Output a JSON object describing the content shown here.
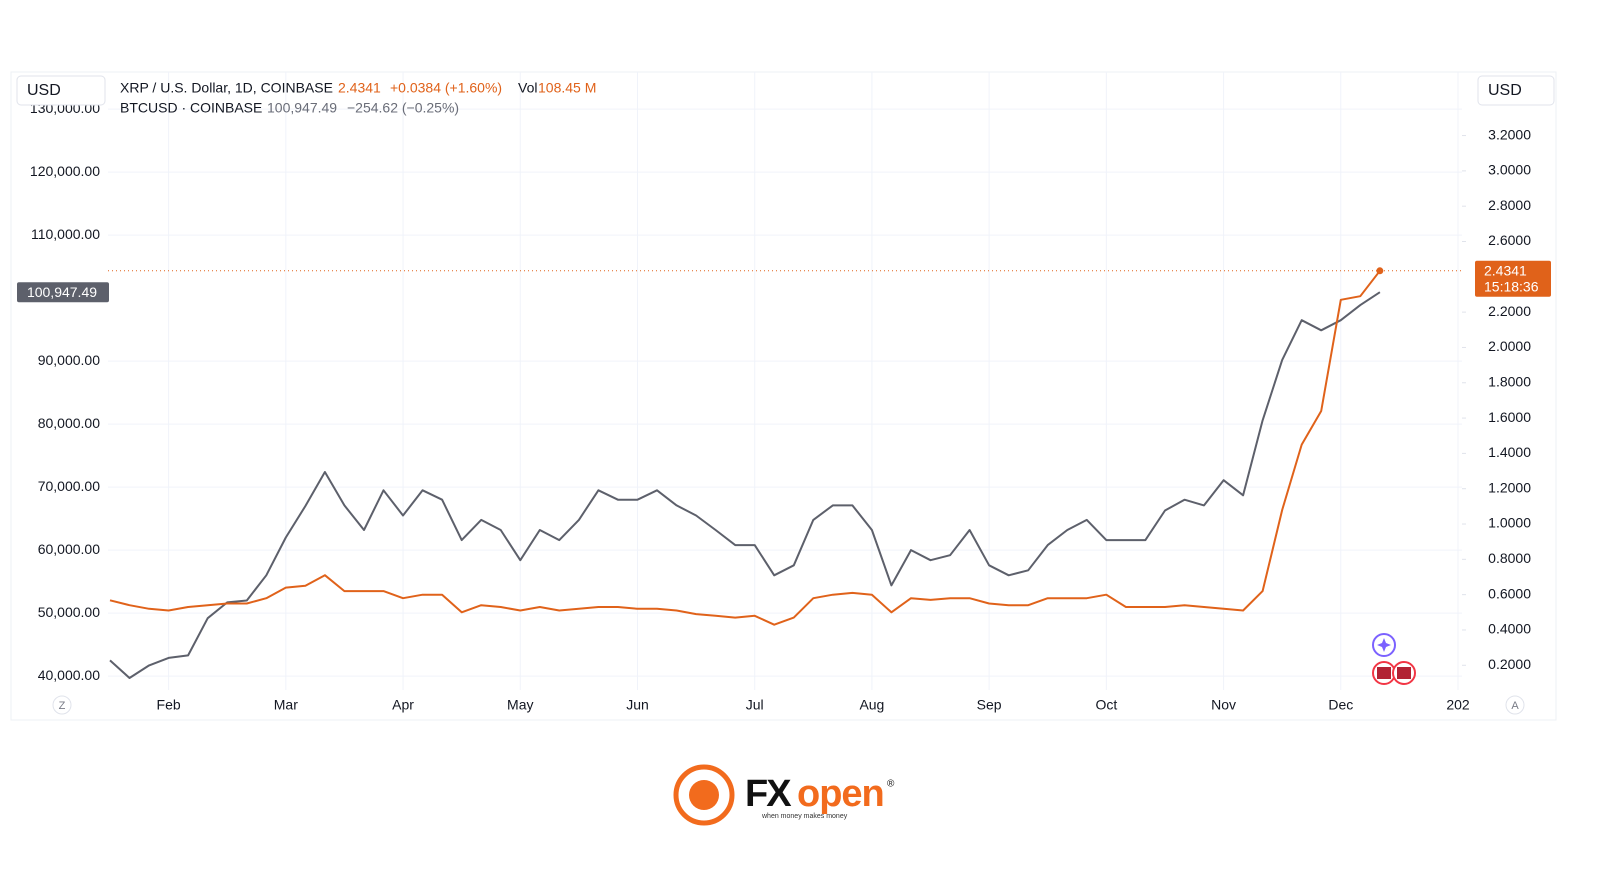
{
  "chart_data": {
    "type": "line",
    "header": {
      "left_unit": "USD",
      "right_unit": "USD",
      "xrp_name": "XRP / U.S. Dollar, 1D, COINBASE",
      "xrp_price": "2.4341",
      "xrp_change": "+0.0384 (+1.60%)",
      "vol_label": "Vol",
      "vol_value": "108.45 M",
      "btc_name": "BTCUSD · COINBASE",
      "btc_price": "100,947.49",
      "btc_change": "−254.62 (−0.25%)",
      "timer": "15:18:36",
      "left_button": "Z",
      "right_button": "A"
    },
    "categories": [
      null,
      null,
      null,
      "Feb",
      null,
      null,
      null,
      null,
      null,
      "Mar",
      null,
      null,
      null,
      null,
      null,
      "Apr",
      null,
      null,
      null,
      null,
      null,
      "May",
      null,
      null,
      null,
      null,
      null,
      "Jun",
      null,
      null,
      null,
      null,
      null,
      "Jul",
      null,
      null,
      null,
      null,
      null,
      "Aug",
      null,
      null,
      null,
      null,
      null,
      "Sep",
      null,
      null,
      null,
      null,
      null,
      "Oct",
      null,
      null,
      null,
      null,
      null,
      "Nov",
      null,
      null,
      null,
      null,
      null,
      "Dec",
      null,
      null,
      null,
      null,
      null,
      "202"
    ],
    "series": [
      {
        "name": "BTCUSD",
        "color": "#5d606b",
        "axis": "y",
        "values": [
          42500,
          39700,
          41700,
          42900,
          43300,
          49200,
          51700,
          52000,
          56000,
          62000,
          67000,
          72400,
          67100,
          63200,
          69500,
          65500,
          69500,
          68000,
          61600,
          64800,
          63200,
          58400,
          63200,
          61600,
          64800,
          69500,
          68000,
          68000,
          69500,
          67100,
          65500,
          63200,
          60800,
          60800,
          56000,
          57600,
          64800,
          67100,
          67100,
          63200,
          54400,
          60000,
          58400,
          59200,
          63200,
          57600,
          56000,
          56800,
          60800,
          63200,
          64800,
          61600,
          61600,
          61600,
          66300,
          68000,
          67100,
          71100,
          68700,
          80600,
          90200,
          96500,
          94900,
          96500,
          98900,
          100947.49,
          null,
          null,
          null,
          null
        ]
      },
      {
        "name": "XRP / U.S. Dollar",
        "color": "#e0621a",
        "axis": "y2",
        "values": [
          0.568,
          0.54,
          0.52,
          0.51,
          0.53,
          0.54,
          0.55,
          0.55,
          0.58,
          0.64,
          0.65,
          0.71,
          0.62,
          0.62,
          0.62,
          0.58,
          0.6,
          0.6,
          0.5,
          0.54,
          0.53,
          0.51,
          0.53,
          0.51,
          0.52,
          0.53,
          0.53,
          0.52,
          0.52,
          0.51,
          0.49,
          0.48,
          0.47,
          0.48,
          0.43,
          0.47,
          0.58,
          0.6,
          0.61,
          0.6,
          0.5,
          0.58,
          0.57,
          0.58,
          0.58,
          0.55,
          0.54,
          0.54,
          0.58,
          0.58,
          0.58,
          0.6,
          0.53,
          0.53,
          0.53,
          0.54,
          0.53,
          0.52,
          0.51,
          0.62,
          1.08,
          1.45,
          1.64,
          2.27,
          2.29,
          2.4341,
          null,
          null,
          null,
          null
        ]
      }
    ],
    "ylim": [
      37800,
      135900
    ],
    "yticks": [
      {
        "value": 40000,
        "label": "40,000.00"
      },
      {
        "value": 50000,
        "label": "50,000.00"
      },
      {
        "value": 60000,
        "label": "60,000.00"
      },
      {
        "value": 70000,
        "label": "70,000.00"
      },
      {
        "value": 80000,
        "label": "80,000.00"
      },
      {
        "value": 90000,
        "label": "90,000.00"
      },
      {
        "value": 110000,
        "label": "110,000.00"
      },
      {
        "value": 120000,
        "label": "120,000.00"
      },
      {
        "value": 130000,
        "label": "130,000.00"
      }
    ],
    "y2lim": [
      0.06,
      3.56
    ],
    "y2ticks": [
      {
        "value": 0.2,
        "label": "0.2000"
      },
      {
        "value": 0.4,
        "label": "0.4000"
      },
      {
        "value": 0.6,
        "label": "0.6000"
      },
      {
        "value": 0.8,
        "label": "0.8000"
      },
      {
        "value": 1,
        "label": "1.0000"
      },
      {
        "value": 1.2,
        "label": "1.2000"
      },
      {
        "value": 1.4,
        "label": "1.4000"
      },
      {
        "value": 1.6,
        "label": "1.6000"
      },
      {
        "value": 1.8,
        "label": "1.8000"
      },
      {
        "value": 2,
        "label": "2.0000"
      },
      {
        "value": 2.2,
        "label": "2.2000"
      },
      {
        "value": 2.6,
        "label": "2.6000"
      },
      {
        "value": 2.8,
        "label": "2.8000"
      },
      {
        "value": 3,
        "label": "3.0000"
      },
      {
        "value": 3.2,
        "label": "3.2000"
      }
    ],
    "grid": true
  },
  "logo": {
    "brand_dark": "FX",
    "brand_accent": "open",
    "registered": "®",
    "tagline": "when money makes money"
  }
}
